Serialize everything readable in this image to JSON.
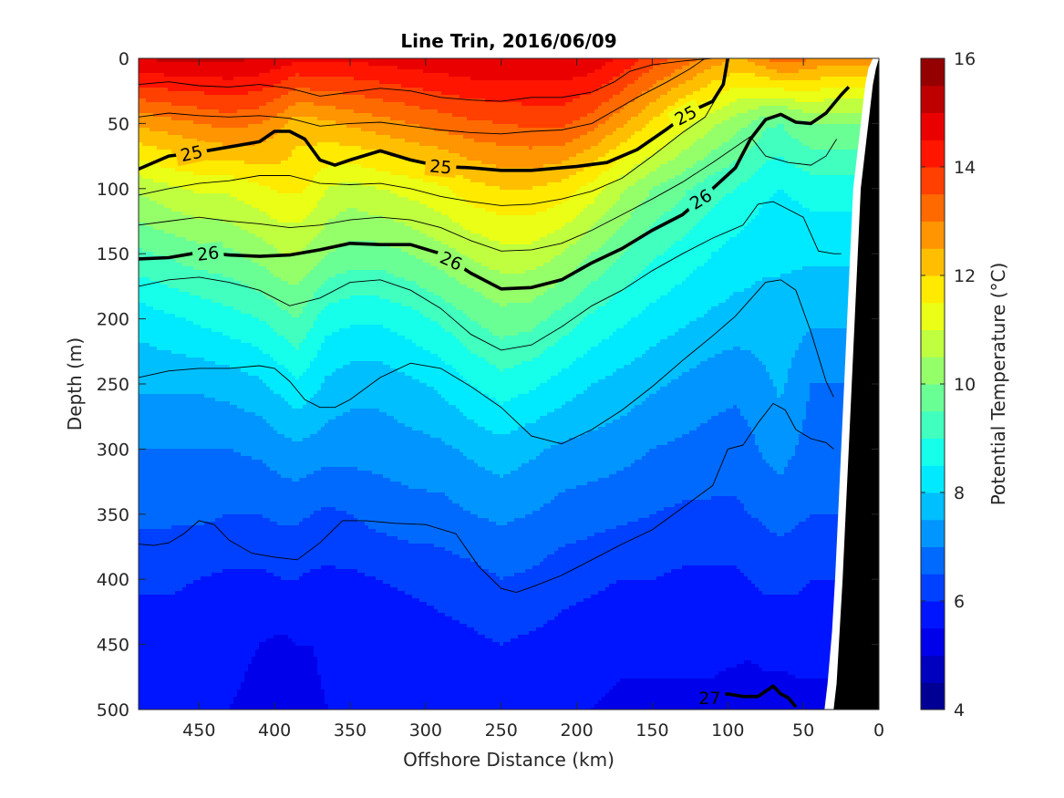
{
  "chart_data": {
    "type": "heatmap",
    "subtype": "filled-contour-section",
    "title": "Line Trin, 2016/06/09",
    "xlabel": "Offshore Distance (km)",
    "ylabel": "Depth (m)",
    "xlim": [
      490,
      0
    ],
    "ylim": [
      0,
      500
    ],
    "x_reversed": true,
    "y_reversed": true,
    "x_ticks": [
      450,
      400,
      350,
      300,
      250,
      200,
      150,
      100,
      50,
      0
    ],
    "y_ticks": [
      0,
      50,
      100,
      150,
      200,
      250,
      300,
      350,
      400,
      450,
      500
    ],
    "colorbar": {
      "label": "Potential Temperature (°C)",
      "clim": [
        4,
        16
      ],
      "ticks": [
        4,
        6,
        8,
        10,
        12,
        14,
        16
      ],
      "levels": [
        4,
        4.5,
        5,
        5.5,
        6,
        6.5,
        7,
        7.5,
        8,
        8.5,
        9,
        9.5,
        10,
        10.5,
        11,
        11.5,
        12,
        12.5,
        13,
        13.5,
        14,
        14.5,
        15,
        15.5,
        16
      ]
    },
    "x": [
      490,
      470,
      450,
      430,
      410,
      395,
      385,
      375,
      365,
      350,
      330,
      310,
      290,
      270,
      250,
      230,
      210,
      190,
      170,
      150,
      130,
      110,
      95,
      85,
      75,
      65,
      55,
      45,
      35
    ],
    "temperature_profiles": {
      "depths": [
        0,
        50,
        100,
        150,
        200,
        250,
        300,
        350,
        400,
        450,
        500
      ],
      "columns": [
        [
          15.0,
          12.6,
          10.6,
          9.4,
          8.2,
          7.6,
          7.0,
          6.6,
          6.1,
          5.7,
          5.5
        ],
        [
          15.1,
          12.8,
          10.9,
          9.6,
          8.4,
          7.6,
          7.0,
          6.6,
          6.1,
          5.7,
          5.5
        ],
        [
          15.1,
          13.0,
          11.1,
          9.8,
          8.6,
          7.6,
          7.0,
          6.6,
          6.0,
          5.6,
          5.5
        ],
        [
          15.1,
          13.2,
          11.1,
          9.9,
          8.8,
          7.7,
          7.0,
          6.5,
          5.9,
          5.6,
          5.5
        ],
        [
          15.0,
          13.0,
          11.4,
          10.2,
          9.0,
          7.9,
          7.1,
          6.5,
          5.9,
          5.5,
          5.4
        ],
        [
          14.8,
          12.6,
          11.6,
          10.5,
          9.3,
          8.2,
          7.3,
          6.6,
          6.0,
          5.4,
          5.3
        ],
        [
          14.6,
          12.2,
          11.6,
          10.5,
          9.5,
          8.4,
          7.4,
          6.6,
          6.0,
          5.5,
          5.3
        ],
        [
          14.6,
          12.3,
          11.4,
          10.3,
          9.1,
          8.2,
          7.3,
          6.5,
          5.9,
          5.5,
          5.4
        ],
        [
          14.6,
          12.4,
          11.0,
          10.0,
          8.7,
          7.9,
          7.2,
          6.4,
          5.9,
          5.6,
          5.5
        ],
        [
          14.6,
          12.6,
          10.8,
          9.8,
          8.6,
          7.7,
          7.2,
          6.5,
          5.9,
          5.6,
          5.5
        ],
        [
          14.7,
          12.8,
          11.0,
          9.8,
          8.6,
          7.7,
          7.2,
          6.7,
          6.0,
          5.7,
          5.5
        ],
        [
          14.8,
          13.0,
          11.2,
          10.0,
          8.8,
          7.9,
          7.3,
          6.8,
          6.1,
          5.7,
          5.5
        ],
        [
          14.9,
          13.2,
          11.4,
          10.3,
          9.1,
          8.1,
          7.4,
          6.8,
          6.2,
          5.8,
          5.6
        ],
        [
          15.0,
          13.4,
          11.8,
          10.6,
          9.5,
          8.5,
          7.6,
          7.0,
          6.3,
          5.9,
          5.6
        ],
        [
          15.0,
          13.5,
          12.0,
          10.8,
          9.8,
          8.8,
          7.8,
          7.1,
          6.5,
          6.0,
          5.7
        ],
        [
          15.0,
          13.6,
          12.0,
          10.8,
          9.7,
          8.6,
          7.6,
          7.0,
          6.4,
          5.9,
          5.6
        ],
        [
          15.0,
          13.6,
          11.8,
          10.5,
          9.3,
          8.3,
          7.4,
          6.8,
          6.2,
          5.8,
          5.5
        ],
        [
          14.9,
          13.2,
          11.3,
          10.0,
          8.9,
          8.0,
          7.3,
          6.7,
          6.1,
          5.7,
          5.5
        ],
        [
          14.4,
          12.6,
          10.6,
          9.5,
          8.6,
          7.8,
          7.2,
          6.6,
          6.0,
          5.6,
          5.4
        ],
        [
          13.8,
          11.9,
          10.0,
          9.1,
          8.3,
          7.6,
          7.0,
          6.5,
          6.0,
          5.6,
          5.4
        ],
        [
          13.3,
          11.2,
          9.6,
          8.8,
          8.1,
          7.4,
          6.9,
          6.4,
          5.9,
          5.6,
          5.4
        ],
        [
          12.8,
          10.6,
          9.2,
          8.5,
          7.9,
          7.2,
          6.8,
          6.4,
          5.9,
          5.6,
          5.4
        ],
        [
          12.5,
          10.2,
          9.0,
          8.3,
          7.8,
          7.1,
          6.8,
          6.4,
          5.9,
          5.6,
          5.3
        ],
        [
          12.6,
          10.0,
          8.8,
          8.2,
          7.8,
          7.2,
          6.9,
          6.5,
          6.0,
          5.6,
          5.2
        ],
        [
          13.0,
          9.6,
          8.6,
          8.1,
          7.8,
          7.4,
          7.1,
          6.6,
          6.1,
          5.7,
          5.2
        ],
        [
          13.3,
          9.5,
          8.5,
          8.1,
          7.8,
          7.6,
          7.2,
          6.7,
          6.1,
          5.7,
          5.2
        ],
        [
          13.2,
          9.8,
          8.6,
          8.1,
          7.7,
          7.3,
          7.0,
          6.6,
          6.1,
          5.7,
          5.3
        ],
        [
          13.0,
          10.0,
          8.7,
          8.1,
          7.6,
          7.0,
          6.8,
          6.5,
          6.0,
          5.6,
          5.4
        ],
        [
          12.8,
          10.0,
          8.7,
          8.1,
          7.6,
          7.0,
          6.8,
          6.5,
          6.0,
          5.6,
          5.4
        ]
      ]
    },
    "density_contours": [
      {
        "label": "25",
        "x": [
          490,
          470,
          450,
          430,
          410,
          400,
          390,
          380,
          370,
          360,
          350,
          330,
          310,
          290,
          270,
          250,
          230,
          200,
          180,
          160,
          140,
          125,
          110,
          103,
          100
        ],
        "depth": [
          85,
          75,
          72,
          68,
          64,
          56,
          56,
          62,
          78,
          82,
          78,
          71,
          78,
          83,
          84,
          86,
          86,
          83,
          80,
          70,
          54,
          41,
          33,
          20,
          0
        ]
      },
      {
        "label": "26",
        "x": [
          490,
          470,
          450,
          430,
          410,
          390,
          370,
          350,
          330,
          310,
          290,
          270,
          250,
          230,
          210,
          190,
          170,
          150,
          130,
          110,
          95,
          85,
          75,
          65,
          55,
          45,
          35,
          25,
          20
        ],
        "depth": [
          154,
          153,
          149,
          151,
          152,
          151,
          147,
          142,
          143,
          143,
          150,
          165,
          177,
          176,
          170,
          157,
          146,
          132,
          120,
          100,
          84,
          62,
          47,
          43,
          49,
          50,
          42,
          28,
          22
        ]
      },
      {
        "label": "27",
        "x": [
          120,
          110,
          100,
          90,
          80,
          70,
          65,
          60,
          55
        ],
        "depth": [
          498,
          489,
          488,
          490,
          490,
          482,
          488,
          491,
          498
        ]
      }
    ],
    "thin_contours": [
      {
        "x": [
          490,
          470,
          450,
          430,
          410,
          390,
          370,
          350,
          330,
          310,
          290,
          270,
          250,
          230,
          210,
          190,
          175,
          165,
          150,
          130,
          110
        ],
        "depth": [
          20,
          18,
          21,
          22,
          20,
          23,
          29,
          26,
          23,
          25,
          30,
          32,
          33,
          30,
          30,
          26,
          18,
          10,
          5,
          2,
          0
        ]
      },
      {
        "x": [
          490,
          470,
          450,
          430,
          410,
          390,
          370,
          350,
          330,
          310,
          290,
          270,
          250,
          230,
          210,
          190,
          175,
          160,
          140,
          125,
          115
        ],
        "depth": [
          45,
          42,
          44,
          45,
          44,
          46,
          52,
          50,
          49,
          52,
          55,
          57,
          58,
          56,
          55,
          50,
          40,
          30,
          18,
          8,
          0
        ]
      },
      {
        "x": [
          490,
          470,
          450,
          430,
          410,
          390,
          370,
          350,
          330,
          310,
          290,
          270,
          250,
          230,
          210,
          190,
          170,
          150,
          130,
          115,
          105
        ],
        "depth": [
          105,
          100,
          96,
          94,
          90,
          90,
          96,
          97,
          96,
          100,
          106,
          110,
          113,
          112,
          108,
          102,
          92,
          75,
          57,
          45,
          25
        ]
      },
      {
        "x": [
          490,
          470,
          450,
          430,
          410,
          390,
          370,
          350,
          330,
          310,
          290,
          270,
          250,
          230,
          210,
          190,
          170,
          150,
          130,
          110,
          95,
          85,
          75,
          60,
          45,
          35,
          28
        ],
        "depth": [
          128,
          125,
          122,
          125,
          127,
          130,
          128,
          124,
          122,
          124,
          130,
          140,
          148,
          147,
          142,
          132,
          120,
          108,
          95,
          80,
          68,
          60,
          75,
          80,
          82,
          75,
          62
        ]
      },
      {
        "x": [
          490,
          470,
          450,
          430,
          410,
          390,
          370,
          350,
          330,
          310,
          290,
          270,
          250,
          230,
          210,
          190,
          170,
          150,
          130,
          110,
          90,
          80,
          70,
          60,
          50,
          40,
          30,
          25
        ],
        "depth": [
          175,
          170,
          168,
          172,
          178,
          190,
          184,
          172,
          170,
          178,
          192,
          212,
          224,
          220,
          206,
          190,
          178,
          163,
          150,
          138,
          128,
          112,
          110,
          116,
          122,
          148,
          150,
          150
        ]
      },
      {
        "x": [
          490,
          470,
          450,
          430,
          410,
          400,
          390,
          380,
          370,
          360,
          350,
          330,
          310,
          290,
          270,
          250,
          230,
          210,
          190,
          170,
          150,
          130,
          110,
          95,
          85,
          75,
          65,
          55,
          45,
          35,
          30
        ],
        "depth": [
          245,
          240,
          238,
          238,
          236,
          238,
          248,
          262,
          268,
          268,
          262,
          245,
          234,
          238,
          252,
          268,
          290,
          296,
          285,
          270,
          252,
          232,
          213,
          198,
          185,
          172,
          170,
          178,
          210,
          248,
          260
        ]
      },
      {
        "x": [
          490,
          480,
          470,
          460,
          450,
          440,
          430,
          415,
          400,
          385,
          370,
          355,
          340,
          320,
          300,
          280,
          265,
          250,
          240,
          230,
          210,
          190,
          170,
          150,
          130,
          110,
          100,
          90,
          80,
          70,
          62,
          55,
          45,
          35,
          30
        ],
        "depth": [
          373,
          374,
          372,
          365,
          355,
          358,
          370,
          380,
          383,
          385,
          372,
          355,
          355,
          357,
          358,
          365,
          390,
          407,
          410,
          406,
          397,
          385,
          373,
          362,
          345,
          328,
          300,
          297,
          280,
          265,
          270,
          285,
          292,
          295,
          300
        ]
      }
    ],
    "seafloor": {
      "x": [
        30,
        28,
        26,
        24,
        22,
        20,
        18,
        16,
        14,
        12,
        10,
        8,
        6,
        4,
        2,
        0
      ],
      "depth": [
        500,
        480,
        440,
        400,
        350,
        300,
        250,
        200,
        150,
        100,
        80,
        60,
        40,
        20,
        8,
        0
      ]
    },
    "colors": {
      "colormap": "jet",
      "contour_line": "#000000",
      "seafloor": "#000000",
      "background": "#ffffff"
    }
  }
}
